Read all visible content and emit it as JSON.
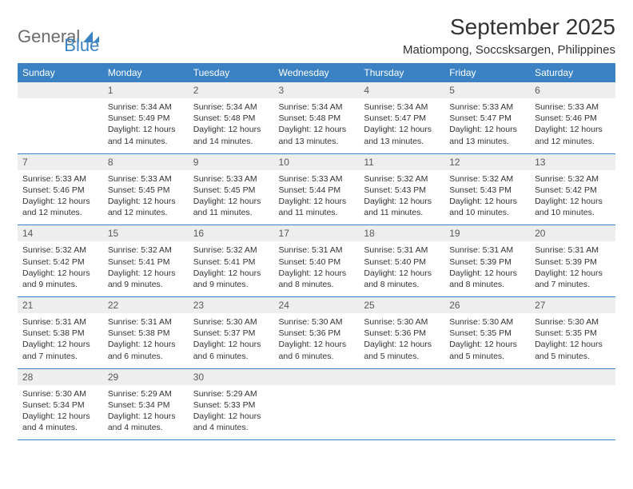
{
  "logo": {
    "text_general": "General",
    "text_blue": "Blue",
    "icon_color": "#3a82c4"
  },
  "header": {
    "month_title": "September 2025",
    "location": "Matiompong, Soccsksargen, Philippines"
  },
  "colors": {
    "header_bg": "#3a82c4",
    "header_text": "#ffffff",
    "daynum_bg": "#eeeeee",
    "daynum_text": "#595959",
    "border": "#3a82c4",
    "body_text": "#333333",
    "logo_gray": "#6b6b6b"
  },
  "day_headers": [
    "Sunday",
    "Monday",
    "Tuesday",
    "Wednesday",
    "Thursday",
    "Friday",
    "Saturday"
  ],
  "weeks": [
    {
      "nums": [
        "",
        "1",
        "2",
        "3",
        "4",
        "5",
        "6"
      ],
      "cells": [
        null,
        {
          "sunrise": "Sunrise: 5:34 AM",
          "sunset": "Sunset: 5:49 PM",
          "day1": "Daylight: 12 hours",
          "day2": "and 14 minutes."
        },
        {
          "sunrise": "Sunrise: 5:34 AM",
          "sunset": "Sunset: 5:48 PM",
          "day1": "Daylight: 12 hours",
          "day2": "and 14 minutes."
        },
        {
          "sunrise": "Sunrise: 5:34 AM",
          "sunset": "Sunset: 5:48 PM",
          "day1": "Daylight: 12 hours",
          "day2": "and 13 minutes."
        },
        {
          "sunrise": "Sunrise: 5:34 AM",
          "sunset": "Sunset: 5:47 PM",
          "day1": "Daylight: 12 hours",
          "day2": "and 13 minutes."
        },
        {
          "sunrise": "Sunrise: 5:33 AM",
          "sunset": "Sunset: 5:47 PM",
          "day1": "Daylight: 12 hours",
          "day2": "and 13 minutes."
        },
        {
          "sunrise": "Sunrise: 5:33 AM",
          "sunset": "Sunset: 5:46 PM",
          "day1": "Daylight: 12 hours",
          "day2": "and 12 minutes."
        }
      ]
    },
    {
      "nums": [
        "7",
        "8",
        "9",
        "10",
        "11",
        "12",
        "13"
      ],
      "cells": [
        {
          "sunrise": "Sunrise: 5:33 AM",
          "sunset": "Sunset: 5:46 PM",
          "day1": "Daylight: 12 hours",
          "day2": "and 12 minutes."
        },
        {
          "sunrise": "Sunrise: 5:33 AM",
          "sunset": "Sunset: 5:45 PM",
          "day1": "Daylight: 12 hours",
          "day2": "and 12 minutes."
        },
        {
          "sunrise": "Sunrise: 5:33 AM",
          "sunset": "Sunset: 5:45 PM",
          "day1": "Daylight: 12 hours",
          "day2": "and 11 minutes."
        },
        {
          "sunrise": "Sunrise: 5:33 AM",
          "sunset": "Sunset: 5:44 PM",
          "day1": "Daylight: 12 hours",
          "day2": "and 11 minutes."
        },
        {
          "sunrise": "Sunrise: 5:32 AM",
          "sunset": "Sunset: 5:43 PM",
          "day1": "Daylight: 12 hours",
          "day2": "and 11 minutes."
        },
        {
          "sunrise": "Sunrise: 5:32 AM",
          "sunset": "Sunset: 5:43 PM",
          "day1": "Daylight: 12 hours",
          "day2": "and 10 minutes."
        },
        {
          "sunrise": "Sunrise: 5:32 AM",
          "sunset": "Sunset: 5:42 PM",
          "day1": "Daylight: 12 hours",
          "day2": "and 10 minutes."
        }
      ]
    },
    {
      "nums": [
        "14",
        "15",
        "16",
        "17",
        "18",
        "19",
        "20"
      ],
      "cells": [
        {
          "sunrise": "Sunrise: 5:32 AM",
          "sunset": "Sunset: 5:42 PM",
          "day1": "Daylight: 12 hours",
          "day2": "and 9 minutes."
        },
        {
          "sunrise": "Sunrise: 5:32 AM",
          "sunset": "Sunset: 5:41 PM",
          "day1": "Daylight: 12 hours",
          "day2": "and 9 minutes."
        },
        {
          "sunrise": "Sunrise: 5:32 AM",
          "sunset": "Sunset: 5:41 PM",
          "day1": "Daylight: 12 hours",
          "day2": "and 9 minutes."
        },
        {
          "sunrise": "Sunrise: 5:31 AM",
          "sunset": "Sunset: 5:40 PM",
          "day1": "Daylight: 12 hours",
          "day2": "and 8 minutes."
        },
        {
          "sunrise": "Sunrise: 5:31 AM",
          "sunset": "Sunset: 5:40 PM",
          "day1": "Daylight: 12 hours",
          "day2": "and 8 minutes."
        },
        {
          "sunrise": "Sunrise: 5:31 AM",
          "sunset": "Sunset: 5:39 PM",
          "day1": "Daylight: 12 hours",
          "day2": "and 8 minutes."
        },
        {
          "sunrise": "Sunrise: 5:31 AM",
          "sunset": "Sunset: 5:39 PM",
          "day1": "Daylight: 12 hours",
          "day2": "and 7 minutes."
        }
      ]
    },
    {
      "nums": [
        "21",
        "22",
        "23",
        "24",
        "25",
        "26",
        "27"
      ],
      "cells": [
        {
          "sunrise": "Sunrise: 5:31 AM",
          "sunset": "Sunset: 5:38 PM",
          "day1": "Daylight: 12 hours",
          "day2": "and 7 minutes."
        },
        {
          "sunrise": "Sunrise: 5:31 AM",
          "sunset": "Sunset: 5:38 PM",
          "day1": "Daylight: 12 hours",
          "day2": "and 6 minutes."
        },
        {
          "sunrise": "Sunrise: 5:30 AM",
          "sunset": "Sunset: 5:37 PM",
          "day1": "Daylight: 12 hours",
          "day2": "and 6 minutes."
        },
        {
          "sunrise": "Sunrise: 5:30 AM",
          "sunset": "Sunset: 5:36 PM",
          "day1": "Daylight: 12 hours",
          "day2": "and 6 minutes."
        },
        {
          "sunrise": "Sunrise: 5:30 AM",
          "sunset": "Sunset: 5:36 PM",
          "day1": "Daylight: 12 hours",
          "day2": "and 5 minutes."
        },
        {
          "sunrise": "Sunrise: 5:30 AM",
          "sunset": "Sunset: 5:35 PM",
          "day1": "Daylight: 12 hours",
          "day2": "and 5 minutes."
        },
        {
          "sunrise": "Sunrise: 5:30 AM",
          "sunset": "Sunset: 5:35 PM",
          "day1": "Daylight: 12 hours",
          "day2": "and 5 minutes."
        }
      ]
    },
    {
      "nums": [
        "28",
        "29",
        "30",
        "",
        "",
        "",
        ""
      ],
      "cells": [
        {
          "sunrise": "Sunrise: 5:30 AM",
          "sunset": "Sunset: 5:34 PM",
          "day1": "Daylight: 12 hours",
          "day2": "and 4 minutes."
        },
        {
          "sunrise": "Sunrise: 5:29 AM",
          "sunset": "Sunset: 5:34 PM",
          "day1": "Daylight: 12 hours",
          "day2": "and 4 minutes."
        },
        {
          "sunrise": "Sunrise: 5:29 AM",
          "sunset": "Sunset: 5:33 PM",
          "day1": "Daylight: 12 hours",
          "day2": "and 4 minutes."
        },
        null,
        null,
        null,
        null
      ]
    }
  ]
}
